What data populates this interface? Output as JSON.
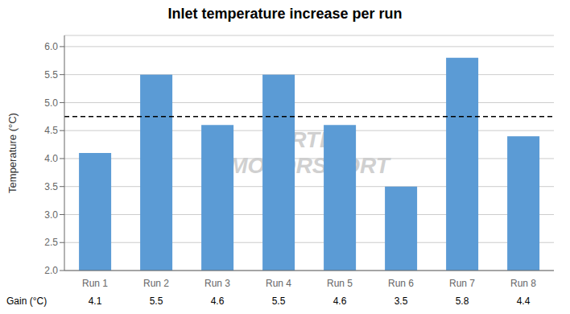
{
  "chart_data": {
    "type": "bar",
    "title": "Inlet temperature increase per run",
    "categories": [
      "Run 1",
      "Run 2",
      "Run 3",
      "Run 4",
      "Run 5",
      "Run 6",
      "Run 7",
      "Run 8"
    ],
    "values": [
      4.1,
      5.5,
      4.6,
      5.5,
      4.6,
      3.5,
      5.8,
      4.4
    ],
    "color": "#5B9BD5",
    "y_label": "Temperature (°C)",
    "ylim": [
      2.0,
      6.2
    ],
    "yticks": [
      {
        "value": 2,
        "label": "2.0"
      },
      2.5,
      {
        "value": 3,
        "label": "3.0"
      },
      3.5,
      {
        "value": 4,
        "label": "4.0"
      },
      4.5,
      {
        "value": 5,
        "label": "5.0"
      },
      5.5,
      {
        "value": 6,
        "label": "6.0"
      }
    ],
    "grid": true,
    "reference_line": 4.75,
    "gain_row": {
      "label": "Gain (°C)",
      "values": [
        4.1,
        5.5,
        4.6,
        5.5,
        4.6,
        3.5,
        5.8,
        4.4
      ]
    },
    "watermark": "AIRTEC\nMOTORSPORT"
  }
}
